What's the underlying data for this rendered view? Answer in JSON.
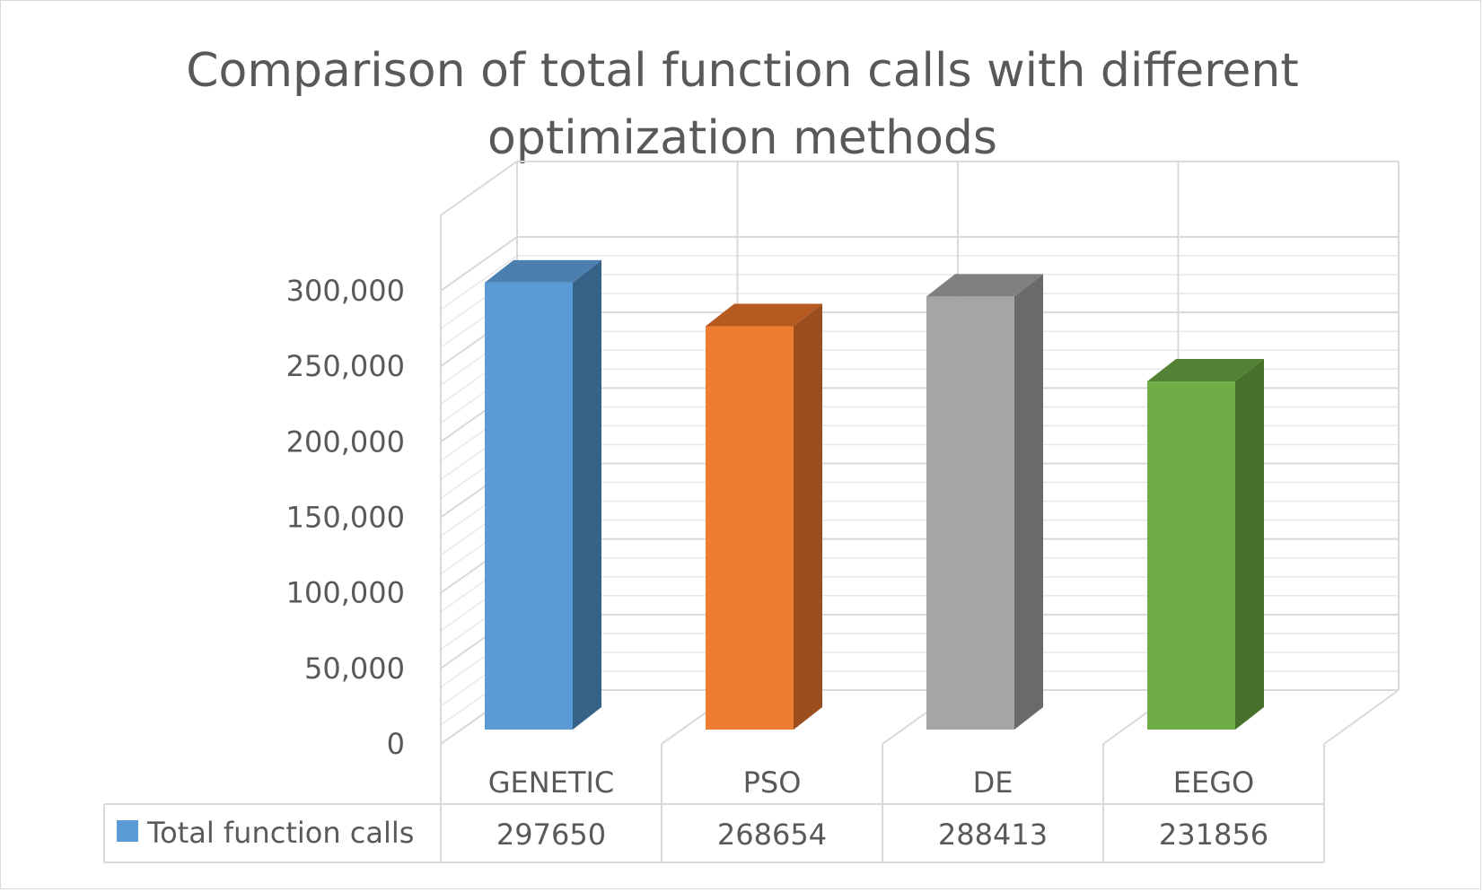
{
  "chart_data": {
    "type": "bar",
    "title": [
      "Comparison of total function calls with different",
      "optimization methods"
    ],
    "categories": [
      "GENETIC",
      "PSO",
      "DE",
      "EEGO"
    ],
    "series": [
      {
        "name": "Total function calls",
        "values": [
          297650,
          268654,
          288413,
          231856
        ],
        "value_labels": [
          "297650",
          "268654",
          "288413",
          "231856"
        ]
      }
    ],
    "bar_colors": [
      {
        "front": "#5b9bd5",
        "side": "#376389",
        "top": "#4a7fb0"
      },
      {
        "front": "#ed7d31",
        "side": "#9a4e1e",
        "top": "#b65a22"
      },
      {
        "front": "#a5a5a5",
        "side": "#6a6a6a",
        "top": "#808080"
      },
      {
        "front": "#70ad47",
        "side": "#46722c",
        "top": "#548235"
      }
    ],
    "legend_color": "#5b9bd5",
    "yticks": [
      "0",
      "50,000",
      "100,000",
      "150,000",
      "200,000",
      "250,000",
      "300,000"
    ],
    "ylim": [
      0,
      300000
    ],
    "grid": true,
    "legend": "data-table"
  }
}
